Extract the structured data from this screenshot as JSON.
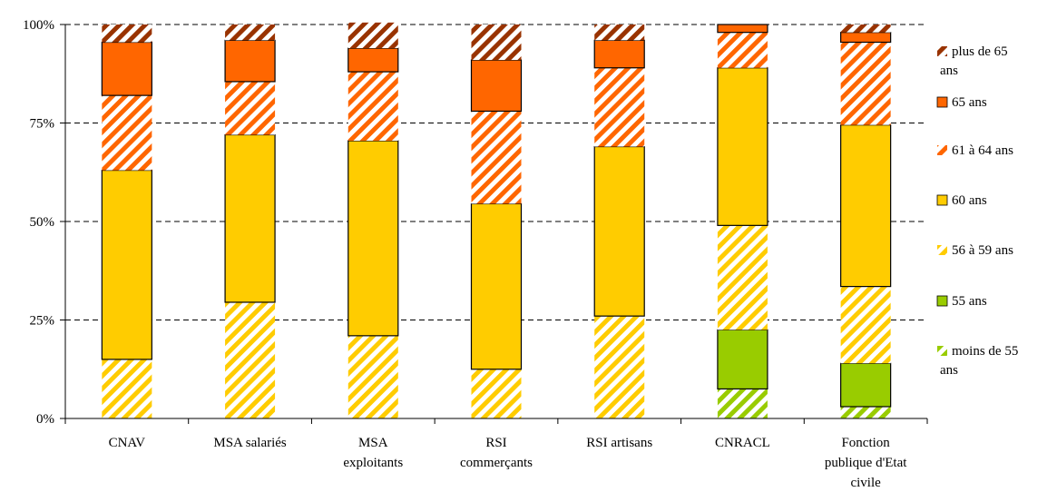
{
  "chart_data": {
    "type": "bar",
    "stacked": true,
    "normalized": true,
    "categories": [
      [
        "CNAV"
      ],
      [
        "MSA salariés"
      ],
      [
        "MSA",
        "exploitants"
      ],
      [
        "RSI",
        "commerçants"
      ],
      [
        "RSI artisans"
      ],
      [
        "CNRACL"
      ],
      [
        "Fonction",
        "publique d'Etat",
        "civile"
      ]
    ],
    "y_ticks": [
      "0%",
      "25%",
      "50%",
      "75%",
      "100%"
    ],
    "ylim": [
      0,
      100
    ],
    "grid": true,
    "legend_position": "right",
    "series": [
      {
        "name": "moins de 55 ans",
        "legend_lines": [
          "moins de 55",
          "ans"
        ],
        "color": "#99cc00",
        "pattern": true,
        "outline": false,
        "values": [
          0,
          0,
          0,
          0,
          0,
          7.5,
          3
        ]
      },
      {
        "name": "55 ans",
        "legend_lines": [
          "55 ans"
        ],
        "color": "#99cc00",
        "pattern": false,
        "outline": true,
        "values": [
          0,
          0,
          0,
          0,
          0,
          15,
          11
        ]
      },
      {
        "name": "56 à 59 ans",
        "legend_lines": [
          "56 à 59 ans"
        ],
        "color": "#ffcc00",
        "pattern": true,
        "outline": false,
        "values": [
          15,
          29.5,
          21,
          12.5,
          26,
          26.5,
          19.5
        ]
      },
      {
        "name": "60 ans",
        "legend_lines": [
          "60 ans"
        ],
        "color": "#ffcc00",
        "pattern": false,
        "outline": true,
        "values": [
          48,
          42.5,
          49.5,
          42,
          43,
          40,
          41
        ]
      },
      {
        "name": "61 à 64 ans",
        "legend_lines": [
          "61 à 64 ans"
        ],
        "color": "#ff6600",
        "pattern": true,
        "outline": false,
        "values": [
          19,
          13.5,
          17.5,
          23.5,
          20,
          9,
          21
        ]
      },
      {
        "name": "65 ans",
        "legend_lines": [
          "65 ans"
        ],
        "color": "#ff6600",
        "pattern": false,
        "outline": true,
        "values": [
          13.5,
          10.5,
          6,
          13,
          7,
          2,
          2.5
        ]
      },
      {
        "name": "plus de 65 ans",
        "legend_lines": [
          "plus de 65",
          "ans"
        ],
        "color": "#993300",
        "pattern": true,
        "outline": false,
        "values": [
          4.5,
          4,
          6.5,
          9,
          4,
          0,
          2
        ]
      }
    ]
  }
}
